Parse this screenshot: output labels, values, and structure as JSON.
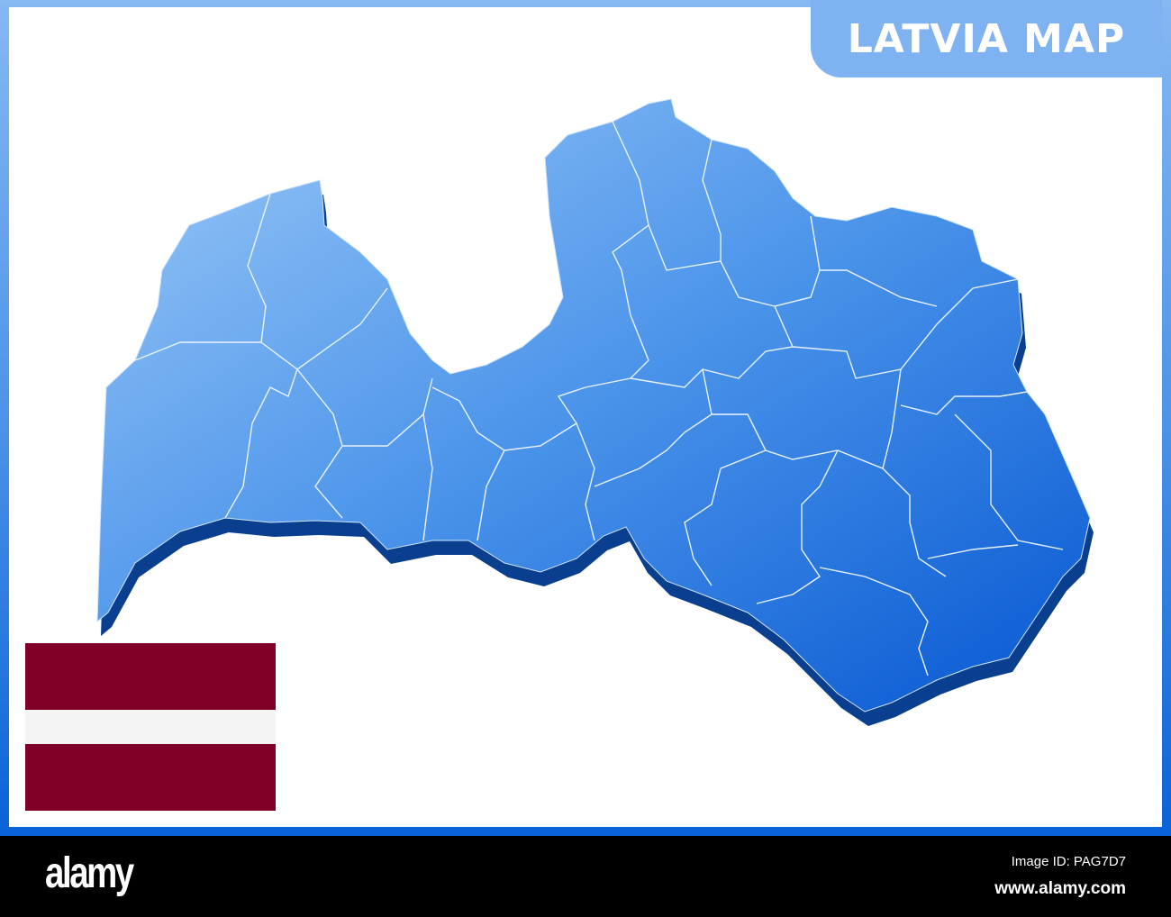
{
  "title": "LATVIA MAP",
  "colors": {
    "map_light": "#8ec1f5",
    "map_dark": "#0b5fd6",
    "map_shadow": "#0a3f8f",
    "flag_maroon": "#7f0027",
    "flag_white": "#f4f4f4",
    "title_tab": "#7fb2f1"
  },
  "flag": {
    "country": "Latvia",
    "stripes": [
      "maroon",
      "white",
      "maroon"
    ]
  },
  "footer": {
    "logo": "alamy",
    "image_id": "Image ID: PAG7D7",
    "url": "www.alamy.com"
  }
}
